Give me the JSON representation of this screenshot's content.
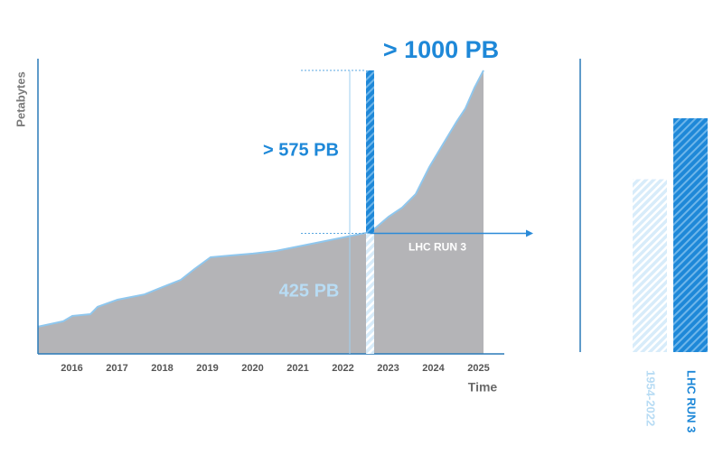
{
  "chart_data": {
    "type": "area",
    "y_label": "Petabytes",
    "x_label": "Time",
    "xlim": [
      2015.25,
      2025.57
    ],
    "xticks": [
      2016,
      2017,
      2018,
      2019,
      2020,
      2021,
      2022,
      2023,
      2024,
      2025
    ],
    "ylim": [
      0,
      1000
    ],
    "series": [
      {
        "color": "#b4b4b7",
        "x": [
          2015.25,
          2015.81,
          2016.01,
          2016.41,
          2016.57,
          2017.01,
          2017.61,
          2018.01,
          2018.41,
          2018.71,
          2019.07,
          2019.51,
          2020.01,
          2020.51,
          2021.01,
          2021.51,
          2022.01,
          2022.51,
          2022.71,
          2023.01,
          2023.31,
          2023.61,
          2023.91,
          2024.21,
          2024.51,
          2024.71,
          2024.91,
          2025.11
        ],
        "values": [
          96,
          115,
          134,
          140,
          166,
          191,
          210,
          236,
          261,
          299,
          341,
          347,
          354,
          363,
          379,
          395,
          411,
          427,
          443,
          484,
          516,
          564,
          659,
          739,
          818,
          866,
          939,
          1000
        ]
      }
    ],
    "stack_bar": {
      "x": 2022.6,
      "top_label": "> 1000 PB",
      "segments": [
        {
          "value": 425,
          "label": "425 PB",
          "color": "#b8dcf4"
        },
        {
          "value": 575,
          "label": "> 575 PB",
          "color": "#1e88d8"
        }
      ]
    },
    "arrow_label": "LHC RUN 3",
    "bar_labels": [
      "1954-2022",
      "LHC RUN 3"
    ]
  }
}
